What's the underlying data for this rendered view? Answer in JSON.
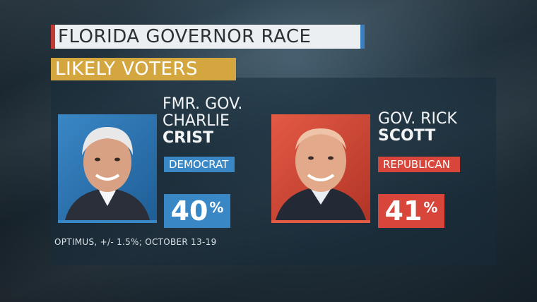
{
  "header": {
    "title": "FLORIDA GOVERNOR RACE",
    "subtitle": "LIKELY VOTERS"
  },
  "candidates": [
    {
      "title_line1": "FMR. GOV.",
      "title_line2": "CHARLIE",
      "surname": "CRIST",
      "party": "DEMOCRAT",
      "percent": "40",
      "percent_sign": "%",
      "color": "#3a87c6"
    },
    {
      "title_line1": "GOV. RICK",
      "surname": "SCOTT",
      "party": "REPUBLICAN",
      "percent": "41",
      "percent_sign": "%",
      "color": "#d8453b"
    }
  ],
  "footer": {
    "source": "OPTIMUS, +/- 1.5%; OCTOBER 13-19"
  },
  "colors": {
    "title_accent_red": "#c23a34",
    "title_accent_blue": "#3b7fc0",
    "subtitle_bg": "#d3a63f"
  }
}
